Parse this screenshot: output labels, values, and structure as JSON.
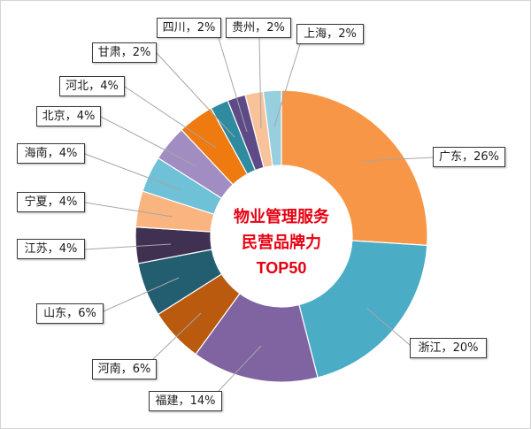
{
  "chart_data": {
    "type": "pie",
    "donut": true,
    "title_lines": [
      "物业管理服务",
      "民营品牌力",
      "TOP50"
    ],
    "categories": [
      "广东",
      "浙江",
      "福建",
      "河南",
      "山东",
      "江苏",
      "宁夏",
      "海南",
      "北京",
      "河北",
      "甘肃",
      "四川",
      "贵州",
      "上海"
    ],
    "values": [
      26,
      20,
      14,
      6,
      6,
      4,
      4,
      4,
      4,
      4,
      2,
      2,
      2,
      2
    ],
    "value_unit": "%",
    "label_separator": "，",
    "colors": [
      "#F79646",
      "#4BACC6",
      "#8064A2",
      "#B95A0E",
      "#225E70",
      "#403152",
      "#F9B47F",
      "#6EC1D6",
      "#A18DC1",
      "#EE7A10",
      "#2F8BA0",
      "#5E4A86",
      "#F8C29A",
      "#97CFDE"
    ],
    "title_color": "#E60012"
  }
}
